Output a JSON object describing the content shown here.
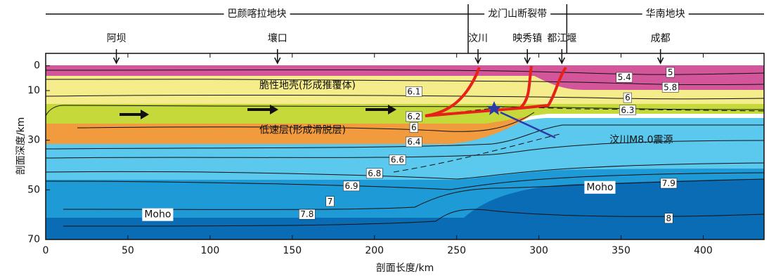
{
  "chart_data": {
    "type": "cross-section",
    "xlabel": "剖面长度/km",
    "ylabel": "剖面深度/km",
    "xlim": [
      0,
      437
    ],
    "ylim": [
      -5,
      70
    ],
    "xticks": [
      0,
      50,
      100,
      150,
      200,
      250,
      300,
      350,
      400
    ],
    "yticks": [
      0,
      10,
      30,
      50,
      70
    ],
    "regions": [
      {
        "name": "巴颜喀拉地块",
        "from": 0,
        "to": 257
      },
      {
        "name": "龙门山断裂带",
        "from": 257,
        "to": 317
      },
      {
        "name": "华南地块",
        "from": 317,
        "to": 437
      }
    ],
    "locations": [
      {
        "name": "阿坝",
        "x": 43
      },
      {
        "name": "壤口",
        "x": 141
      },
      {
        "name": "汶川",
        "x": 263
      },
      {
        "name": "映秀镇",
        "x": 293
      },
      {
        "name": "都江堰",
        "x": 314
      },
      {
        "name": "成都",
        "x": 374
      }
    ],
    "annotations": [
      {
        "text": "脆性地壳(形成推覆体)",
        "x": 130,
        "y": 8
      },
      {
        "text": "低速层(形成滑脱层)",
        "x": 130,
        "y": 26
      },
      {
        "text": "汶川M8.0震源",
        "x": 343,
        "y": 30
      },
      {
        "text": "Moho",
        "x": 60,
        "y": 60
      },
      {
        "text": "Moho",
        "x": 329,
        "y": 49
      }
    ],
    "contour_labels": [
      {
        "value": 5.0,
        "x": 380,
        "y": 2.8
      },
      {
        "value": 5.4,
        "x": 352,
        "y": 4.8
      },
      {
        "value": 5.8,
        "x": 380,
        "y": 8.8
      },
      {
        "value": 6.1,
        "x": 224,
        "y": 10.5
      },
      {
        "value": 6.0,
        "x": 354,
        "y": 13
      },
      {
        "value": 6.3,
        "x": 354,
        "y": 18
      },
      {
        "value": 6.2,
        "x": 224,
        "y": 20.6
      },
      {
        "value": 6.0,
        "x": 224,
        "y": 25
      },
      {
        "value": 6.4,
        "x": 224,
        "y": 30.8
      },
      {
        "value": 6.6,
        "x": 214,
        "y": 38
      },
      {
        "value": 6.8,
        "x": 200,
        "y": 43.5
      },
      {
        "value": 6.9,
        "x": 186,
        "y": 48.6
      },
      {
        "value": 7.0,
        "x": 173,
        "y": 54.8
      },
      {
        "value": 7.8,
        "x": 159,
        "y": 60
      },
      {
        "value": 7.9,
        "x": 379,
        "y": 47.5
      },
      {
        "value": 8.0,
        "x": 379,
        "y": 61.6
      }
    ]
  }
}
